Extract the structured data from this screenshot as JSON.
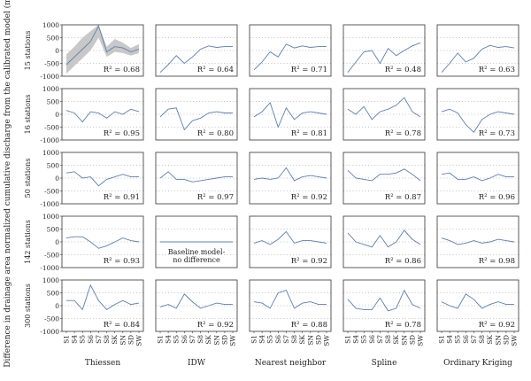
{
  "figure": {
    "ylabel": "Difference in drainage area normalized cumulative discharge from the calibrated model (mm)",
    "columns": [
      "Thiessen",
      "IDW",
      "Nearest neighbor",
      "Spline",
      "Ordinary Kriging"
    ],
    "rows": [
      "15 stations",
      "16 stations",
      "50 stations",
      "142 stations",
      "300 stations"
    ],
    "baseline_note": [
      "Baseline model-",
      "no difference"
    ],
    "colors": {
      "line": "#5b7fb0",
      "band": "#c8c8c8",
      "grid": "#888888",
      "frame": "#333333"
    }
  },
  "chart_data": {
    "type": "line",
    "x": [
      "S1",
      "S4",
      "S5",
      "S6",
      "S7",
      "S8",
      "SK",
      "SN",
      "SD",
      "SW"
    ],
    "ylim": [
      -1000,
      1000
    ],
    "yticks": [
      1000,
      500,
      0,
      -500,
      -1000
    ],
    "grid": "dotted horizontal",
    "panels": [
      [
        {
          "r2": "R² = 0.68",
          "values": [
            -550,
            -250,
            50,
            350,
            950,
            -50,
            150,
            100,
            -50,
            50
          ],
          "band_upper": [
            -150,
            150,
            500,
            750,
            1000,
            150,
            450,
            300,
            100,
            250
          ],
          "band_lower": [
            -900,
            -600,
            -300,
            0,
            500,
            -250,
            -50,
            -100,
            -200,
            -100
          ]
        },
        {
          "r2": "R² = 0.64",
          "values": [
            -850,
            -550,
            -200,
            -500,
            -250,
            50,
            180,
            120,
            150,
            150
          ]
        },
        {
          "r2": "R² = 0.71",
          "values": [
            -750,
            -450,
            -50,
            -250,
            250,
            100,
            180,
            120,
            150,
            150
          ]
        },
        {
          "r2": "R² = 0.48",
          "values": [
            -850,
            -450,
            -50,
            0,
            -500,
            80,
            -200,
            0,
            180,
            300
          ]
        },
        {
          "r2": "R² = 0.63",
          "values": [
            -850,
            -500,
            -100,
            -450,
            -300,
            50,
            200,
            120,
            150,
            100
          ]
        }
      ],
      [
        {
          "r2": "R² = 0.95",
          "values": [
            150,
            50,
            -300,
            100,
            50,
            -150,
            100,
            0,
            200,
            100
          ]
        },
        {
          "r2": "R² = 0.80",
          "values": [
            -100,
            200,
            250,
            -600,
            -250,
            -150,
            50,
            100,
            50,
            50
          ]
        },
        {
          "r2": "R² = 0.81",
          "values": [
            -100,
            100,
            450,
            -500,
            250,
            -200,
            50,
            100,
            50,
            0
          ]
        },
        {
          "r2": "R² = 0.78",
          "values": [
            200,
            0,
            300,
            -200,
            100,
            200,
            350,
            650,
            100,
            -100
          ]
        },
        {
          "r2": "R² = 0.73",
          "values": [
            100,
            200,
            50,
            -400,
            -700,
            -200,
            0,
            100,
            50,
            0
          ]
        }
      ],
      [
        {
          "r2": "R² = 0.91",
          "values": [
            200,
            250,
            0,
            50,
            -300,
            -50,
            50,
            150,
            50,
            50
          ]
        },
        {
          "r2": "R² = 0.97",
          "values": [
            0,
            250,
            -50,
            -50,
            -150,
            -100,
            -50,
            0,
            50,
            50
          ]
        },
        {
          "r2": "R² = 0.92",
          "values": [
            -50,
            0,
            -50,
            0,
            400,
            -100,
            50,
            100,
            50,
            0
          ]
        },
        {
          "r2": "R² = 0.87",
          "values": [
            300,
            0,
            -50,
            -100,
            150,
            150,
            200,
            350,
            150,
            -100
          ]
        },
        {
          "r2": "R² = 0.96",
          "values": [
            150,
            200,
            -50,
            -50,
            50,
            -100,
            0,
            150,
            50,
            50
          ]
        }
      ],
      [
        {
          "r2": "R² = 0.93",
          "values": [
            150,
            200,
            200,
            0,
            -250,
            -150,
            0,
            150,
            50,
            0
          ]
        },
        {
          "r2": "",
          "values": [
            0,
            0,
            0,
            0,
            0,
            0,
            0,
            0,
            0,
            0
          ]
        },
        {
          "r2": "R² = 0.92",
          "values": [
            -50,
            50,
            -100,
            100,
            400,
            -50,
            50,
            50,
            0,
            -50
          ]
        },
        {
          "r2": "R² = 0.86",
          "values": [
            350,
            0,
            -100,
            -200,
            250,
            -200,
            0,
            450,
            100,
            -100
          ]
        },
        {
          "r2": "R² = 0.98",
          "values": [
            150,
            50,
            -100,
            -50,
            50,
            -50,
            0,
            100,
            50,
            0
          ]
        }
      ],
      [
        {
          "r2": "R² = 0.84",
          "values": [
            200,
            200,
            -150,
            800,
            200,
            -150,
            50,
            200,
            50,
            100
          ]
        },
        {
          "r2": "R² = 0.92",
          "values": [
            -50,
            50,
            -100,
            450,
            150,
            -100,
            0,
            100,
            50,
            50
          ]
        },
        {
          "r2": "R² = 0.88",
          "values": [
            150,
            100,
            -100,
            500,
            600,
            -100,
            100,
            150,
            50,
            50
          ]
        },
        {
          "r2": "R² = 0.78",
          "values": [
            250,
            -100,
            -150,
            -150,
            300,
            -200,
            -100,
            600,
            50,
            -100
          ]
        },
        {
          "r2": "R² = 0.92",
          "values": [
            150,
            0,
            -100,
            450,
            250,
            -100,
            50,
            150,
            50,
            50
          ]
        }
      ]
    ]
  }
}
